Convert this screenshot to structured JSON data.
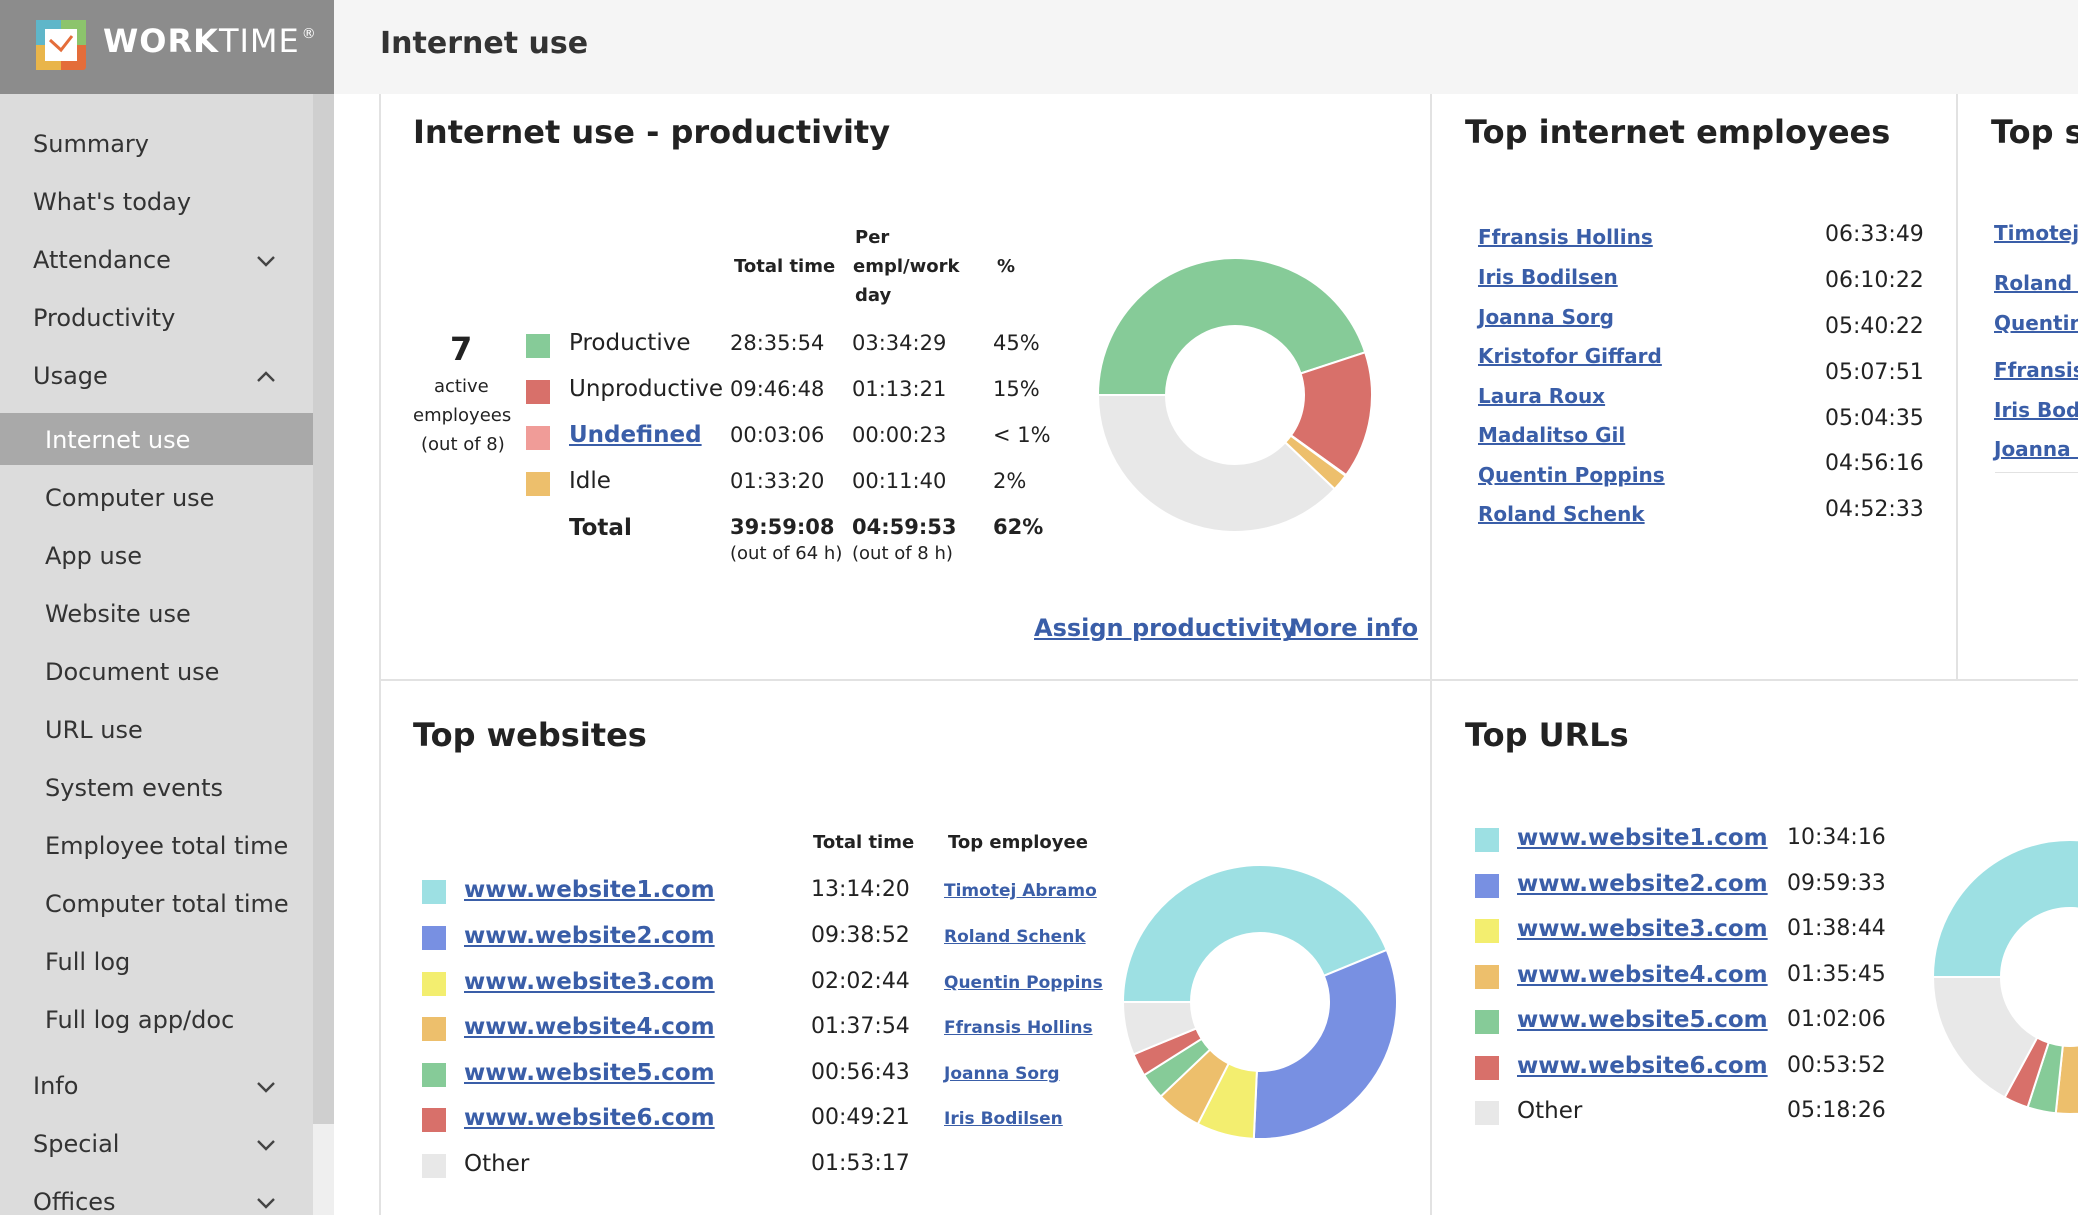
{
  "brand": {
    "name_bold": "WORK",
    "name_thin": "TIME",
    "mark": "®"
  },
  "colors": {
    "productive": "#86cb98",
    "unproductive": "#d8706a",
    "undefined": "#f09c98",
    "idle": "#edbf6c",
    "other": "#e8e8e8",
    "site1": "#9de0e3",
    "site2": "#7890e2",
    "site3": "#f3ee6f",
    "site4": "#edbf6c",
    "site5": "#86cb98",
    "site6": "#d8706a",
    "link": "#3a5ea8"
  },
  "sidebar": {
    "items": [
      {
        "label": "Summary",
        "level": 1
      },
      {
        "label": "What's today",
        "level": 1
      },
      {
        "label": "Attendance",
        "level": 1,
        "chevron": "down"
      },
      {
        "label": "Productivity",
        "level": 1
      },
      {
        "label": "Usage",
        "level": 1,
        "chevron": "up"
      },
      {
        "label": "Internet use",
        "level": 2,
        "active": true
      },
      {
        "label": "Computer use",
        "level": 2
      },
      {
        "label": "App use",
        "level": 2
      },
      {
        "label": "Website use",
        "level": 2
      },
      {
        "label": "Document use",
        "level": 2
      },
      {
        "label": "URL use",
        "level": 2
      },
      {
        "label": "System events",
        "level": 2
      },
      {
        "label": "Employee total time",
        "level": 2
      },
      {
        "label": "Computer total time",
        "level": 2
      },
      {
        "label": "Full log",
        "level": 2
      },
      {
        "label": "Full log app/doc",
        "level": 2
      },
      {
        "label": "Info",
        "level": 1,
        "chevron": "down"
      },
      {
        "label": "Special",
        "level": 1,
        "chevron": "down"
      },
      {
        "label": "Offices",
        "level": 1,
        "chevron": "down"
      }
    ]
  },
  "header": {
    "title": "Internet use"
  },
  "productivity": {
    "title": "Internet use - productivity",
    "active_count": "7",
    "active_label_1": "active",
    "active_label_2": "employees",
    "active_label_3": "(out of 8)",
    "col_total": "Total time",
    "col_per_1": "Per",
    "col_per_2": "empl/work",
    "col_per_3": "day",
    "col_pct": "%",
    "rows": [
      {
        "label": "Productive",
        "total": "28:35:54",
        "per": "03:34:29",
        "pct": "45%",
        "color": "#86cb98",
        "link": false
      },
      {
        "label": "Unproductive",
        "total": "09:46:48",
        "per": "01:13:21",
        "pct": "15%",
        "color": "#d8706a",
        "link": false
      },
      {
        "label": "Undefined",
        "total": "00:03:06",
        "per": "00:00:23",
        "pct": "< 1%",
        "color": "#f09c98",
        "link": true
      },
      {
        "label": "Idle",
        "total": "01:33:20",
        "per": "00:11:40",
        "pct": "2%",
        "color": "#edbf6c",
        "link": false
      }
    ],
    "total": {
      "label": "Total",
      "total": "39:59:08",
      "total_sub": "(out of 64 h)",
      "per": "04:59:53",
      "per_sub": "(out of 8 h)",
      "pct": "62%"
    },
    "assign_link": "Assign productivity",
    "more_link": "More info"
  },
  "top_employees": {
    "title": "Top internet employees",
    "rows": [
      {
        "name": "Ffransis Hollins",
        "time": "06:33:49"
      },
      {
        "name": "Iris Bodilsen",
        "time": "06:10:22"
      },
      {
        "name": "Joanna Sorg",
        "time": "05:40:22"
      },
      {
        "name": "Kristofor Giffard",
        "time": "05:07:51"
      },
      {
        "name": "Laura Roux",
        "time": "05:04:35"
      },
      {
        "name": "Madalitso Gil",
        "time": "04:56:16"
      },
      {
        "name": "Quentin Poppins",
        "time": "04:52:33"
      },
      {
        "name": "Roland Schenk",
        "time": ""
      }
    ]
  },
  "top_sc": {
    "title": "Top sc",
    "names": [
      "Timotej A",
      "Roland S",
      "Quentin",
      "Ffransis",
      "Iris Bodi",
      "Joanna S"
    ]
  },
  "top_websites": {
    "title": "Top websites",
    "col_total": "Total time",
    "col_employee": "Top employee",
    "rows": [
      {
        "site": "www.website1.com",
        "time": "13:14:20",
        "employee": "Timotej Abramo",
        "color": "#9de0e3"
      },
      {
        "site": "www.website2.com",
        "time": "09:38:52",
        "employee": "Roland Schenk",
        "color": "#7890e2"
      },
      {
        "site": "www.website3.com",
        "time": "02:02:44",
        "employee": "Quentin Poppins",
        "color": "#f3ee6f"
      },
      {
        "site": "www.website4.com",
        "time": "01:37:54",
        "employee": "Ffransis Hollins",
        "color": "#edbf6c"
      },
      {
        "site": "www.website5.com",
        "time": "00:56:43",
        "employee": "Joanna Sorg",
        "color": "#86cb98"
      },
      {
        "site": "www.website6.com",
        "time": "00:49:21",
        "employee": "Iris Bodilsen",
        "color": "#d8706a"
      },
      {
        "site": "Other",
        "time": "01:53:17",
        "employee": "",
        "color": "#e8e8e8"
      }
    ]
  },
  "top_urls": {
    "title": "Top URLs",
    "rows": [
      {
        "site": "www.website1.com",
        "time": "10:34:16",
        "color": "#9de0e3"
      },
      {
        "site": "www.website2.com",
        "time": "09:59:33",
        "color": "#7890e2"
      },
      {
        "site": "www.website3.com",
        "time": "01:38:44",
        "color": "#f3ee6f"
      },
      {
        "site": "www.website4.com",
        "time": "01:35:45",
        "color": "#edbf6c"
      },
      {
        "site": "www.website5.com",
        "time": "01:02:06",
        "color": "#86cb98"
      },
      {
        "site": "www.website6.com",
        "time": "00:53:52",
        "color": "#d8706a"
      },
      {
        "site": "Other",
        "time": "05:18:26",
        "color": "#e8e8e8"
      }
    ]
  },
  "chart_data": [
    {
      "type": "pie",
      "chart": "productivity-donut",
      "categories": [
        "Productive",
        "Unproductive",
        "Undefined",
        "Idle",
        "Not used"
      ],
      "values": [
        45,
        15,
        0.1,
        2,
        38
      ],
      "colors": [
        "#86cb98",
        "#d8706a",
        "#f09c98",
        "#edbf6c",
        "#e8e8e8"
      ]
    },
    {
      "type": "pie",
      "chart": "websites-donut",
      "categories": [
        "www.website1.com",
        "www.website2.com",
        "www.website3.com",
        "www.website4.com",
        "www.website5.com",
        "www.website6.com",
        "Other"
      ],
      "values": [
        13.24,
        9.65,
        2.05,
        1.63,
        0.95,
        0.82,
        1.89
      ],
      "colors": [
        "#9de0e3",
        "#7890e2",
        "#f3ee6f",
        "#edbf6c",
        "#86cb98",
        "#d8706a",
        "#e8e8e8"
      ]
    },
    {
      "type": "pie",
      "chart": "urls-donut",
      "categories": [
        "www.website1.com",
        "www.website2.com",
        "www.website3.com",
        "www.website4.com",
        "www.website5.com",
        "www.website6.com",
        "Other"
      ],
      "values": [
        10.57,
        9.99,
        1.65,
        1.6,
        1.04,
        0.9,
        5.31
      ],
      "colors": [
        "#9de0e3",
        "#7890e2",
        "#f3ee6f",
        "#edbf6c",
        "#86cb98",
        "#d8706a",
        "#e8e8e8"
      ]
    }
  ]
}
